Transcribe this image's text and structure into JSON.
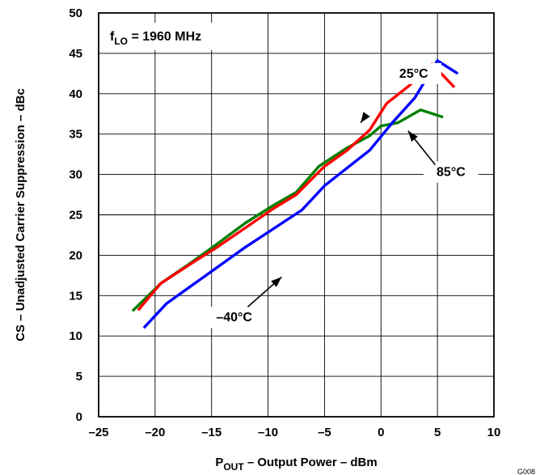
{
  "chart_data": {
    "type": "line",
    "xlabel_main": "P",
    "xlabel_sub": "OUT",
    "xlabel_rest": " – Output Power – dBm",
    "ylabel": "CS – Unadjusted Carrier Suppression – dBc",
    "xlim": [
      -25,
      10
    ],
    "ylim": [
      0,
      50
    ],
    "xticks": [
      "–25",
      "–20",
      "–15",
      "–10",
      "–5",
      "0",
      "5",
      "10"
    ],
    "xtick_values": [
      -25,
      -20,
      -15,
      -10,
      -5,
      0,
      5,
      10
    ],
    "yticks": [
      "0",
      "5",
      "10",
      "15",
      "20",
      "25",
      "30",
      "35",
      "40",
      "45",
      "50"
    ],
    "ytick_values": [
      0,
      5,
      10,
      15,
      20,
      25,
      30,
      35,
      40,
      45,
      50
    ],
    "grid": true,
    "condition": {
      "main": "f",
      "sub": "LO",
      "rest": " = 1960 MHz"
    },
    "figure_id": "G008",
    "series": [
      {
        "name": "25°C",
        "color": "#ff0000",
        "x": [
          -21.5,
          -19.5,
          -17,
          -14.5,
          -12,
          -9.5,
          -7.5,
          -5,
          -3,
          -1,
          0.5,
          2.5,
          4.5,
          6.5
        ],
        "y": [
          13.2,
          16.5,
          18.8,
          21,
          23.4,
          25.8,
          27.5,
          31,
          33,
          35.5,
          38.8,
          41,
          43.7,
          40.8
        ]
      },
      {
        "name": "85°C",
        "color": "#008000",
        "x": [
          -22,
          -19.5,
          -17,
          -14.5,
          -12,
          -9.5,
          -7.5,
          -5.5,
          -3,
          -1,
          0,
          1.5,
          3.5,
          5.5
        ],
        "y": [
          13.1,
          16.5,
          18.9,
          21.4,
          24,
          26.2,
          27.8,
          31,
          33.3,
          34.8,
          36,
          36.4,
          38,
          37.1
        ]
      },
      {
        "name": "–40°C",
        "color": "#0000ff",
        "x": [
          -21,
          -19,
          -17,
          -14.5,
          -12,
          -9.5,
          -7,
          -5,
          -3,
          -1,
          1,
          3,
          5,
          6.8
        ],
        "y": [
          11,
          14,
          16,
          18.5,
          21,
          23.3,
          25.6,
          28.6,
          30.8,
          33,
          36.4,
          39.5,
          44.1,
          42.5
        ]
      }
    ],
    "annotations": [
      {
        "text": "25°C",
        "x": 2.9,
        "y": 42,
        "ax": -1.3,
        "ay": 37.4,
        "hx": -1.8,
        "hy": 36.4
      },
      {
        "text": "85°C",
        "x": 6.2,
        "y": 29.8,
        "ax": 4.8,
        "ay": 31.2,
        "hx": 2.4,
        "hy": 35.4
      },
      {
        "text": "–40°C",
        "x": -13,
        "y": 11.8,
        "ax": -11.8,
        "ay": 13.6,
        "hx": -8.8,
        "hy": 17.3
      }
    ]
  }
}
